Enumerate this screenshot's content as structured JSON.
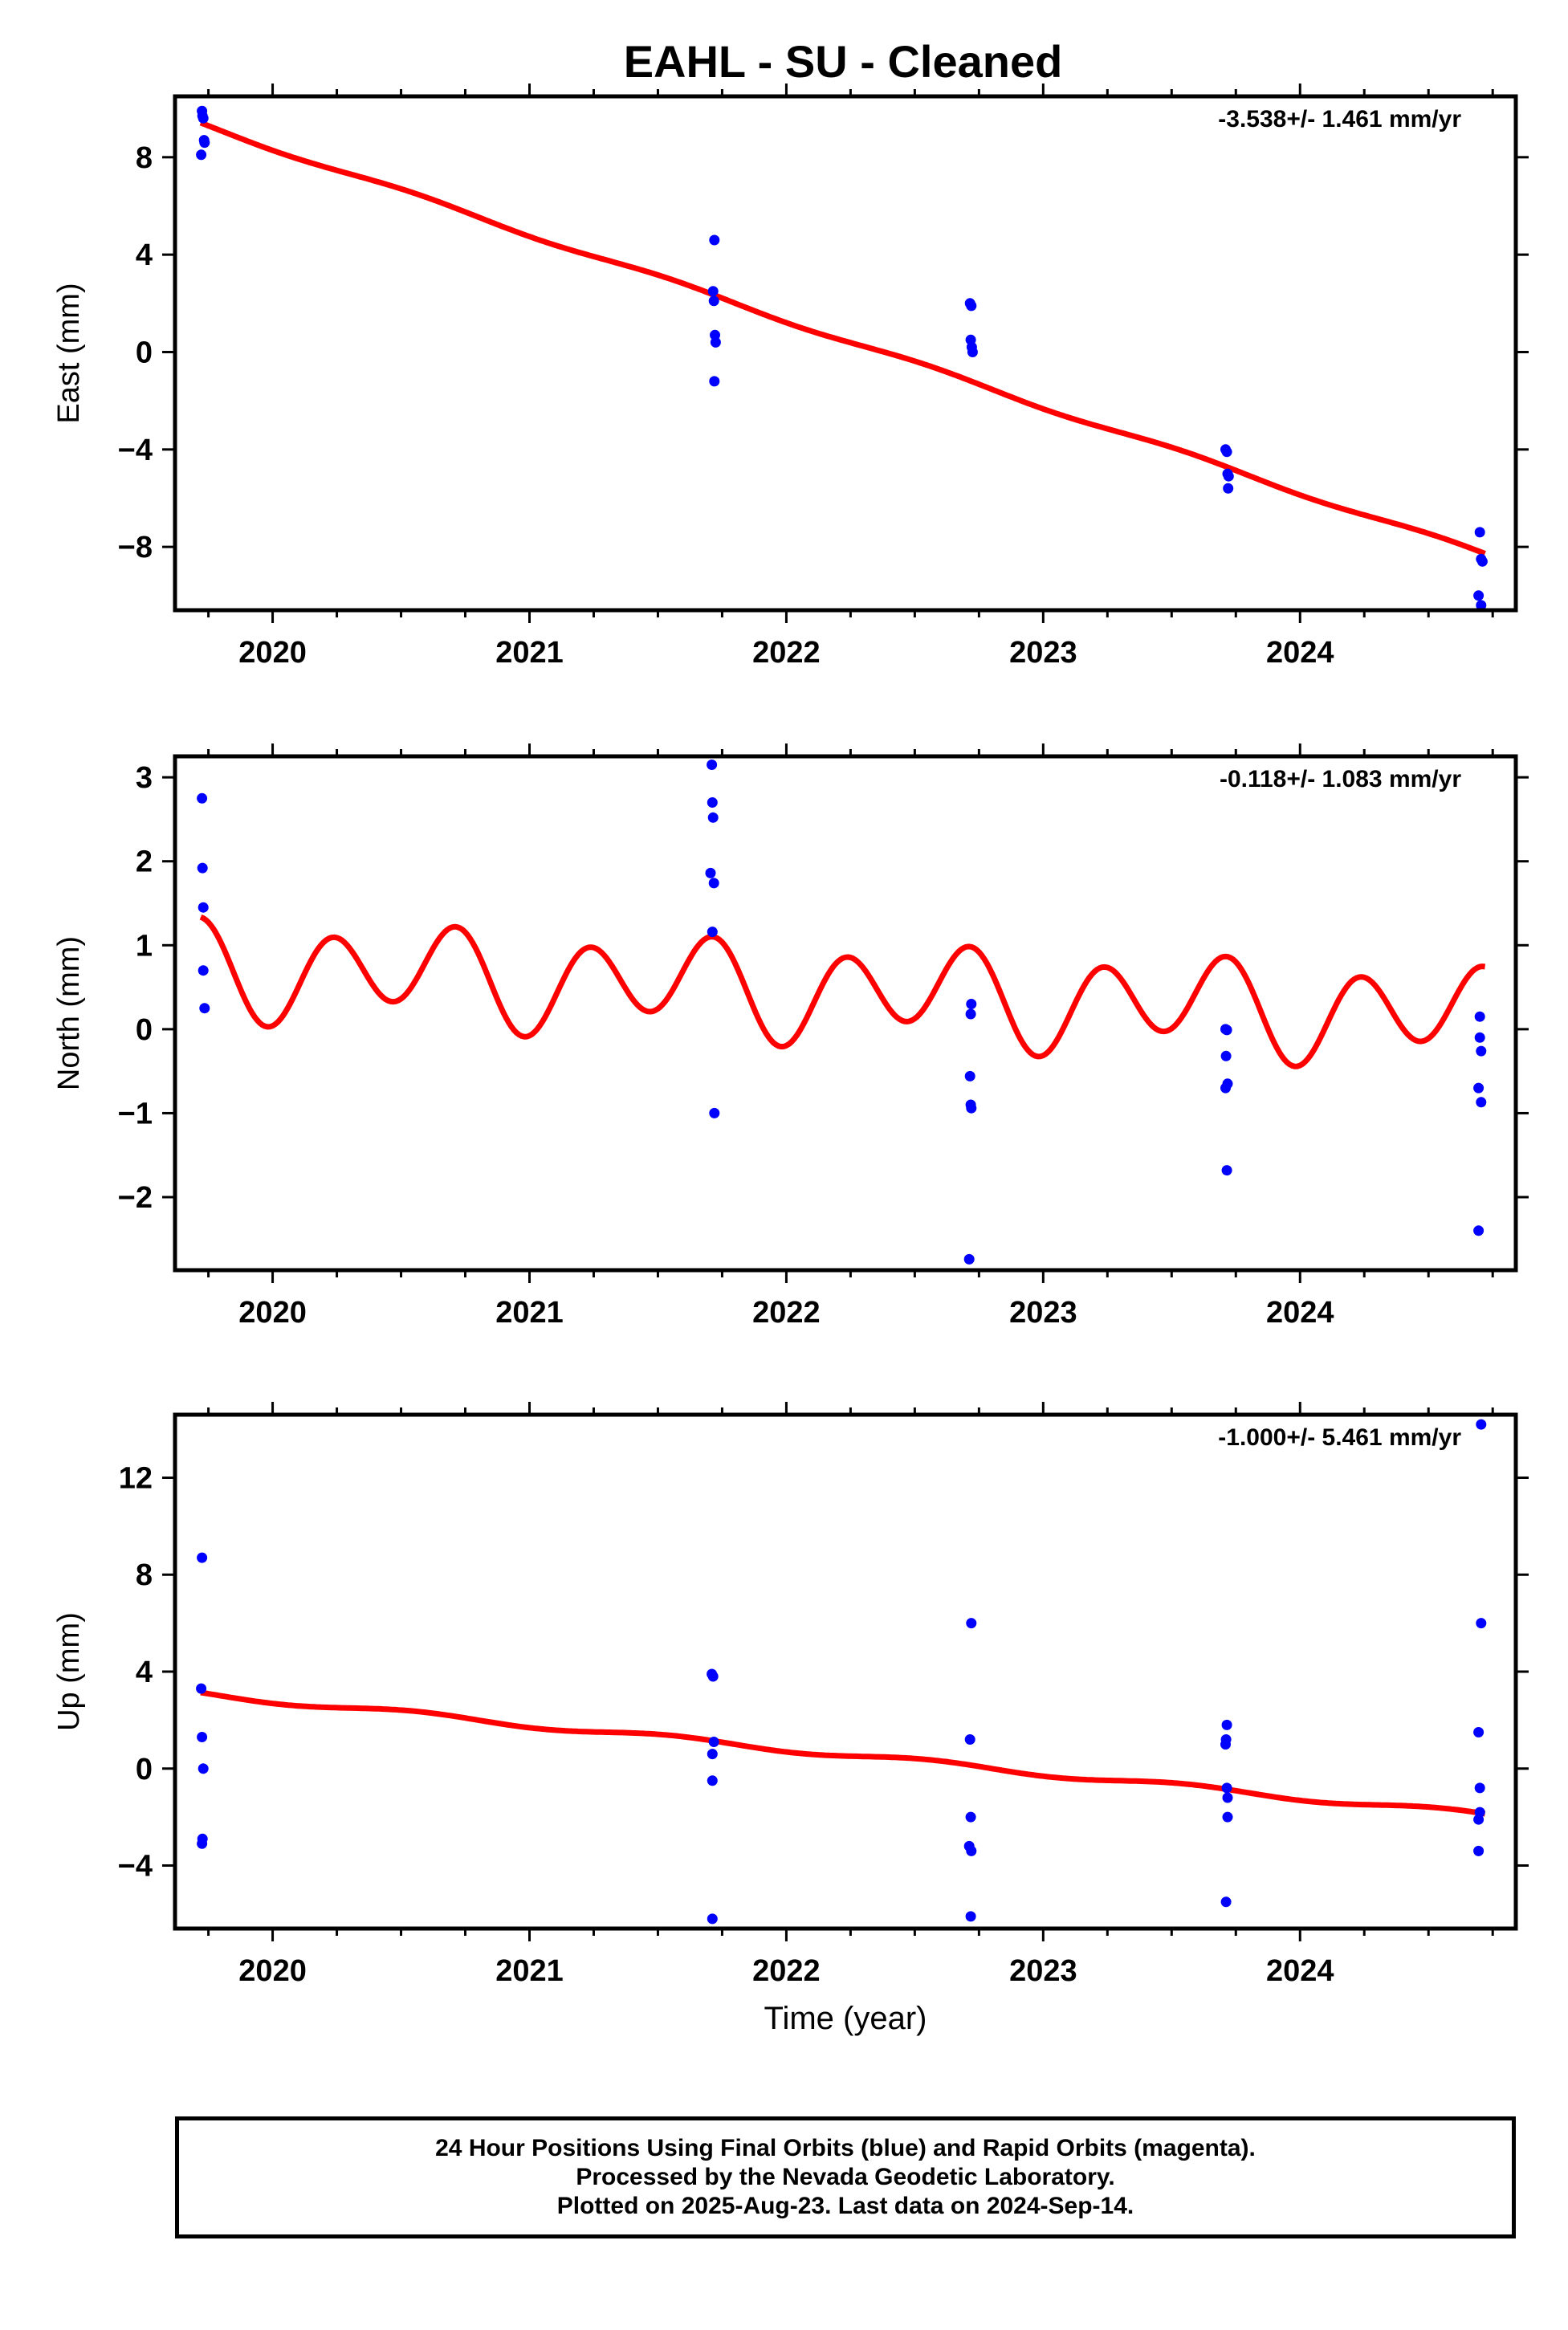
{
  "title": "EAHL  - SU - Cleaned",
  "footer": {
    "line1": "24 Hour Positions Using Final Orbits (blue) and Rapid Orbits (magenta).",
    "line2": "Processed by the Nevada Geodetic Laboratory.",
    "line3": "Plotted on 2025-Aug-23. Last data on 2024-Sep-14."
  },
  "colors": {
    "data": "#0000ff",
    "fit": "#ff0000",
    "frame": "#000000"
  },
  "chart_data": [
    {
      "type": "scatter",
      "panel": "east",
      "ylabel": "East (mm)",
      "xlabel": "",
      "rate_label": "-3.538+/- 1.461 mm/yr",
      "xlim": [
        2019.62,
        2024.84
      ],
      "ylim": [
        -10.6,
        10.5
      ],
      "xticks": [
        2020,
        2021,
        2022,
        2023,
        2024
      ],
      "yticks": [
        -8,
        -4,
        0,
        4,
        8
      ],
      "ytick_labels": [
        "−8",
        "−4",
        "0",
        "4",
        "8"
      ],
      "points": [
        [
          2019.725,
          9.9
        ],
        [
          2019.727,
          9.7
        ],
        [
          2019.73,
          9.6
        ],
        [
          2019.722,
          8.1
        ],
        [
          2019.733,
          8.7
        ],
        [
          2019.735,
          8.6
        ],
        [
          2021.72,
          4.6
        ],
        [
          2021.715,
          2.5
        ],
        [
          2021.718,
          2.1
        ],
        [
          2021.722,
          0.7
        ],
        [
          2021.725,
          0.4
        ],
        [
          2021.72,
          -1.2
        ],
        [
          2022.715,
          2.0
        ],
        [
          2022.72,
          1.9
        ],
        [
          2022.718,
          0.5
        ],
        [
          2022.722,
          0.2
        ],
        [
          2022.725,
          0.0
        ],
        [
          2023.71,
          -4.0
        ],
        [
          2023.715,
          -4.1
        ],
        [
          2023.718,
          -5.0
        ],
        [
          2023.722,
          -5.1
        ],
        [
          2023.72,
          -5.6
        ],
        [
          2024.7,
          -7.4
        ],
        [
          2024.705,
          -8.5
        ],
        [
          2024.71,
          -8.6
        ],
        [
          2024.695,
          -10.0
        ],
        [
          2024.705,
          -10.4
        ]
      ],
      "fit": {
        "trend": -3.538,
        "at_2022": 1.3,
        "amp1": 0.1,
        "amp2": 0.0
      }
    },
    {
      "type": "scatter",
      "panel": "north",
      "ylabel": "North (mm)",
      "xlabel": "",
      "rate_label": "-0.118+/- 1.083 mm/yr",
      "xlim": [
        2019.62,
        2024.84
      ],
      "ylim": [
        -2.87,
        3.25
      ],
      "xticks": [
        2020,
        2021,
        2022,
        2023,
        2024
      ],
      "yticks": [
        -2,
        -1,
        0,
        1,
        2,
        3
      ],
      "ytick_labels": [
        "−2",
        "−1",
        "0",
        "1",
        "2",
        "3"
      ],
      "points": [
        [
          2019.725,
          2.75
        ],
        [
          2019.727,
          1.92
        ],
        [
          2019.73,
          1.45
        ],
        [
          2019.73,
          0.7
        ],
        [
          2019.735,
          0.25
        ],
        [
          2021.71,
          3.15
        ],
        [
          2021.712,
          2.7
        ],
        [
          2021.715,
          2.52
        ],
        [
          2021.705,
          1.86
        ],
        [
          2021.718,
          1.74
        ],
        [
          2021.712,
          1.16
        ],
        [
          2021.72,
          -1.0
        ],
        [
          2022.72,
          0.3
        ],
        [
          2022.718,
          0.18
        ],
        [
          2022.715,
          -0.56
        ],
        [
          2022.718,
          -0.9
        ],
        [
          2022.72,
          -0.94
        ],
        [
          2022.712,
          -2.74
        ],
        [
          2023.71,
          0.0
        ],
        [
          2023.715,
          -0.01
        ],
        [
          2023.712,
          -0.32
        ],
        [
          2023.718,
          -0.65
        ],
        [
          2023.71,
          -0.7
        ],
        [
          2023.715,
          -1.68
        ],
        [
          2024.7,
          0.15
        ],
        [
          2024.7,
          -0.1
        ],
        [
          2024.705,
          -0.26
        ],
        [
          2024.695,
          -0.7
        ],
        [
          2024.705,
          -0.87
        ],
        [
          2024.695,
          -2.4
        ]
      ],
      "fit": {
        "trend": -0.118,
        "at_2022": 0.47,
        "amp1": 0.2,
        "amp2": 0.5
      }
    },
    {
      "type": "scatter",
      "panel": "up",
      "ylabel": "Up (mm)",
      "xlabel": "Time (year)",
      "rate_label": "-1.000+/- 5.461 mm/yr",
      "xlim": [
        2019.62,
        2024.84
      ],
      "ylim": [
        -6.6,
        14.6
      ],
      "xticks": [
        2020,
        2021,
        2022,
        2023,
        2024
      ],
      "yticks": [
        -4,
        0,
        4,
        8,
        12
      ],
      "ytick_labels": [
        "−4",
        "0",
        "4",
        "8",
        "12"
      ],
      "points": [
        [
          2019.725,
          8.7
        ],
        [
          2019.722,
          3.3
        ],
        [
          2019.725,
          1.3
        ],
        [
          2019.73,
          0.0
        ],
        [
          2019.727,
          -2.9
        ],
        [
          2019.725,
          -3.1
        ],
        [
          2021.71,
          3.9
        ],
        [
          2021.715,
          3.8
        ],
        [
          2021.718,
          1.1
        ],
        [
          2021.712,
          0.6
        ],
        [
          2021.712,
          -0.5
        ],
        [
          2021.712,
          -6.2
        ],
        [
          2022.72,
          6.0
        ],
        [
          2022.715,
          1.2
        ],
        [
          2022.718,
          -2.0
        ],
        [
          2022.712,
          -3.2
        ],
        [
          2022.72,
          -3.4
        ],
        [
          2022.718,
          -6.1
        ],
        [
          2023.715,
          1.8
        ],
        [
          2023.712,
          1.2
        ],
        [
          2023.71,
          1.0
        ],
        [
          2023.715,
          -0.8
        ],
        [
          2023.718,
          -1.2
        ],
        [
          2023.718,
          -2.0
        ],
        [
          2023.712,
          -5.5
        ],
        [
          2024.705,
          14.2
        ],
        [
          2024.705,
          6.0
        ],
        [
          2024.695,
          1.5
        ],
        [
          2024.7,
          -0.8
        ],
        [
          2024.7,
          -1.8
        ],
        [
          2024.695,
          -2.1
        ],
        [
          2024.695,
          -3.4
        ]
      ],
      "fit": {
        "trend": -1.0,
        "at_2022": 0.8,
        "amp1": 0.12,
        "amp2": 0.0
      }
    }
  ]
}
